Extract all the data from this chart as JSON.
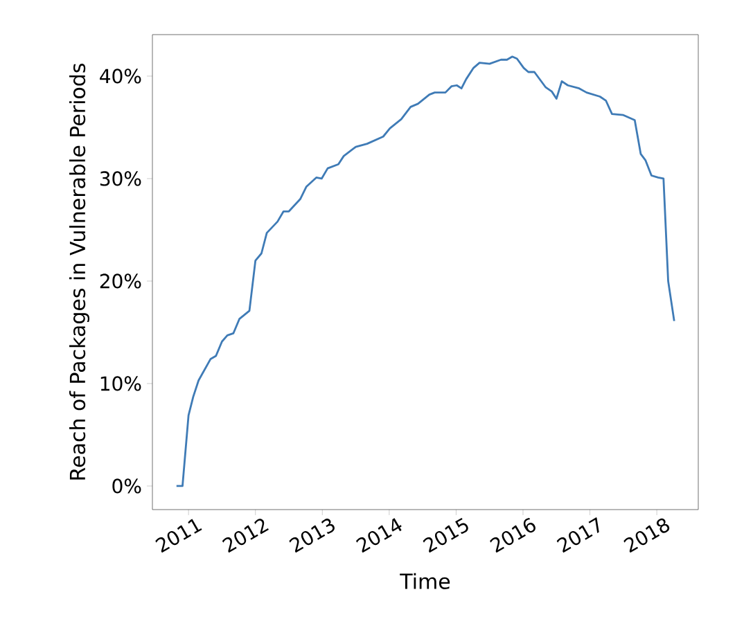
{
  "chart_data": {
    "type": "line",
    "xlabel": "Time",
    "ylabel": "Reach of Packages in Vulnerable Periods",
    "xlim": [
      2010.46,
      2018.62
    ],
    "ylim": [
      -2.3,
      44.05
    ],
    "xticks": [
      2011,
      2012,
      2013,
      2014,
      2015,
      2016,
      2017,
      2018
    ],
    "yticks": [
      {
        "value": 0,
        "label": "0%"
      },
      {
        "value": 10,
        "label": "10%"
      },
      {
        "value": 20,
        "label": "20%"
      },
      {
        "value": 30,
        "label": "30%"
      },
      {
        "value": 40,
        "label": "40%"
      }
    ],
    "marker": "none",
    "line_style": "solid",
    "series": [
      {
        "color": "#3f7bb6",
        "x": [
          2010.82,
          2010.91,
          2011.0,
          2011.07,
          2011.15,
          2011.33,
          2011.41,
          2011.5,
          2011.58,
          2011.67,
          2011.76,
          2011.91,
          2012.0,
          2012.09,
          2012.17,
          2012.33,
          2012.42,
          2012.5,
          2012.67,
          2012.76,
          2012.91,
          2012.99,
          2013.08,
          2013.24,
          2013.32,
          2013.5,
          2013.67,
          2013.91,
          2014.01,
          2014.18,
          2014.32,
          2014.43,
          2014.6,
          2014.68,
          2014.84,
          2014.93,
          2015.01,
          2015.08,
          2015.15,
          2015.26,
          2015.35,
          2015.5,
          2015.67,
          2015.76,
          2015.84,
          2015.91,
          2016.01,
          2016.08,
          2016.17,
          2016.34,
          2016.43,
          2016.5,
          2016.58,
          2016.67,
          2016.84,
          2016.95,
          2017.15,
          2017.24,
          2017.33,
          2017.5,
          2017.67,
          2017.76,
          2017.83,
          2017.92,
          2018.02,
          2018.1,
          2018.17,
          2018.26
        ],
        "values": [
          0,
          0,
          6.9,
          8.7,
          10.3,
          12.4,
          12.7,
          14.1,
          14.7,
          14.9,
          16.3,
          17.1,
          22.0,
          22.7,
          24.7,
          25.8,
          26.8,
          26.8,
          28.0,
          29.2,
          30.1,
          30.0,
          31.0,
          31.4,
          32.2,
          33.1,
          33.4,
          34.1,
          34.9,
          35.8,
          37.0,
          37.3,
          38.2,
          38.4,
          38.4,
          39.0,
          39.1,
          38.8,
          39.7,
          40.8,
          41.3,
          41.2,
          41.6,
          41.6,
          41.9,
          41.7,
          40.8,
          40.4,
          40.4,
          38.9,
          38.5,
          37.8,
          39.5,
          39.1,
          38.8,
          38.4,
          38.0,
          37.6,
          36.3,
          36.2,
          35.7,
          32.4,
          31.8,
          30.3,
          30.1,
          30.0,
          20.0,
          16.1
        ]
      }
    ]
  }
}
